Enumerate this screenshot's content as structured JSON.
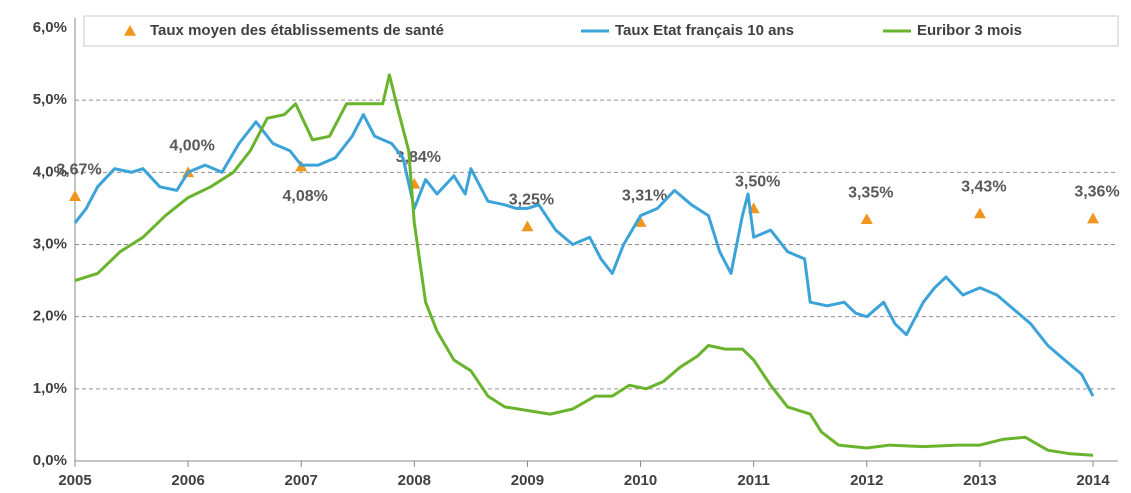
{
  "chart_data": {
    "type": "line",
    "xlim": [
      2005,
      2014
    ],
    "xticks": [
      2005,
      2006,
      2007,
      2008,
      2009,
      2010,
      2011,
      2012,
      2013,
      2014
    ],
    "ylim": [
      0,
      6
    ],
    "yticks": [
      {
        "value": 0,
        "label": "0,0%"
      },
      {
        "value": 1,
        "label": "1,0%"
      },
      {
        "value": 2,
        "label": "2,0%"
      },
      {
        "value": 3,
        "label": "3,0%"
      },
      {
        "value": 4,
        "label": "4,0%"
      },
      {
        "value": 5,
        "label": "5,0%"
      },
      {
        "value": 6,
        "label": "6,0%"
      }
    ],
    "grid": true,
    "series": [
      {
        "name": "Taux moyen des établissements de santé",
        "color": "#f0961e",
        "marker": "triangle",
        "x": [
          2005,
          2006,
          2007,
          2008,
          2009,
          2010,
          2011,
          2012,
          2013,
          2014
        ],
        "values": [
          3.67,
          4.0,
          4.08,
          3.84,
          3.25,
          3.31,
          3.5,
          3.35,
          3.43,
          3.36
        ],
        "value_labels": [
          "3,67%",
          "4,00%",
          "4,08%",
          "3,84%",
          "3,25%",
          "3,31%",
          "3,50%",
          "3,35%",
          "3,43%",
          "3,36%"
        ]
      },
      {
        "name": "Taux Etat français 10 ans",
        "color": "#3ba3d8",
        "x": [
          2005.0,
          2005.1,
          2005.2,
          2005.35,
          2005.5,
          2005.6,
          2005.75,
          2005.9,
          2006.0,
          2006.15,
          2006.3,
          2006.45,
          2006.6,
          2006.75,
          2006.9,
          2007.0,
          2007.15,
          2007.3,
          2007.45,
          2007.55,
          2007.65,
          2007.8,
          2007.9,
          2008.0,
          2008.1,
          2008.2,
          2008.35,
          2008.45,
          2008.5,
          2008.65,
          2008.8,
          2008.9,
          2009.0,
          2009.1,
          2009.25,
          2009.4,
          2009.55,
          2009.65,
          2009.75,
          2009.85,
          2010.0,
          2010.15,
          2010.3,
          2010.45,
          2010.6,
          2010.7,
          2010.8,
          2010.9,
          2010.95,
          2011.0,
          2011.15,
          2011.3,
          2011.45,
          2011.5,
          2011.65,
          2011.8,
          2011.9,
          2012.0,
          2012.15,
          2012.25,
          2012.35,
          2012.5,
          2012.6,
          2012.7,
          2012.85,
          2013.0,
          2013.15,
          2013.3,
          2013.45,
          2013.6,
          2013.75,
          2013.9,
          2014.0
        ],
        "values": [
          3.3,
          3.5,
          3.8,
          4.05,
          4.0,
          4.05,
          3.8,
          3.75,
          4.0,
          4.1,
          4.0,
          4.4,
          4.7,
          4.4,
          4.3,
          4.1,
          4.1,
          4.2,
          4.5,
          4.8,
          4.5,
          4.4,
          4.2,
          3.5,
          3.9,
          3.7,
          3.95,
          3.7,
          4.05,
          3.6,
          3.55,
          3.5,
          3.5,
          3.55,
          3.2,
          3.0,
          3.1,
          2.8,
          2.6,
          3.0,
          3.4,
          3.5,
          3.75,
          3.55,
          3.4,
          2.9,
          2.6,
          3.4,
          3.7,
          3.1,
          3.2,
          2.9,
          2.8,
          2.2,
          2.15,
          2.2,
          2.05,
          2.0,
          2.2,
          1.9,
          1.75,
          2.2,
          2.4,
          2.55,
          2.3,
          2.4,
          2.3,
          2.1,
          1.9,
          1.6,
          1.4,
          1.2,
          0.9
        ]
      },
      {
        "name": "Euribor 3 mois",
        "color": "#6ab42d",
        "x": [
          2005.0,
          2005.2,
          2005.4,
          2005.6,
          2005.8,
          2006.0,
          2006.2,
          2006.4,
          2006.55,
          2006.7,
          2006.85,
          2006.95,
          2007.1,
          2007.25,
          2007.4,
          2007.6,
          2007.72,
          2007.78,
          2007.85,
          2007.95,
          2008.0,
          2008.1,
          2008.2,
          2008.35,
          2008.5,
          2008.65,
          2008.8,
          2009.0,
          2009.2,
          2009.4,
          2009.6,
          2009.75,
          2009.9,
          2010.05,
          2010.2,
          2010.35,
          2010.5,
          2010.6,
          2010.75,
          2010.9,
          2011.0,
          2011.15,
          2011.3,
          2011.5,
          2011.6,
          2011.75,
          2012.0,
          2012.2,
          2012.5,
          2012.8,
          2013.0,
          2013.2,
          2013.4,
          2013.6,
          2013.8,
          2014.0
        ],
        "values": [
          2.5,
          2.6,
          2.9,
          3.1,
          3.4,
          3.65,
          3.8,
          4.0,
          4.3,
          4.75,
          4.8,
          4.95,
          4.45,
          4.5,
          4.95,
          4.95,
          4.95,
          5.35,
          4.9,
          4.3,
          3.3,
          2.2,
          1.8,
          1.4,
          1.25,
          0.9,
          0.75,
          0.7,
          0.65,
          0.72,
          0.9,
          0.9,
          1.05,
          1.0,
          1.1,
          1.3,
          1.45,
          1.6,
          1.55,
          1.55,
          1.4,
          1.05,
          0.75,
          0.65,
          0.4,
          0.22,
          0.18,
          0.22,
          0.2,
          0.22,
          0.22,
          0.3,
          0.33,
          0.15,
          0.1,
          0.08
        ]
      }
    ]
  }
}
